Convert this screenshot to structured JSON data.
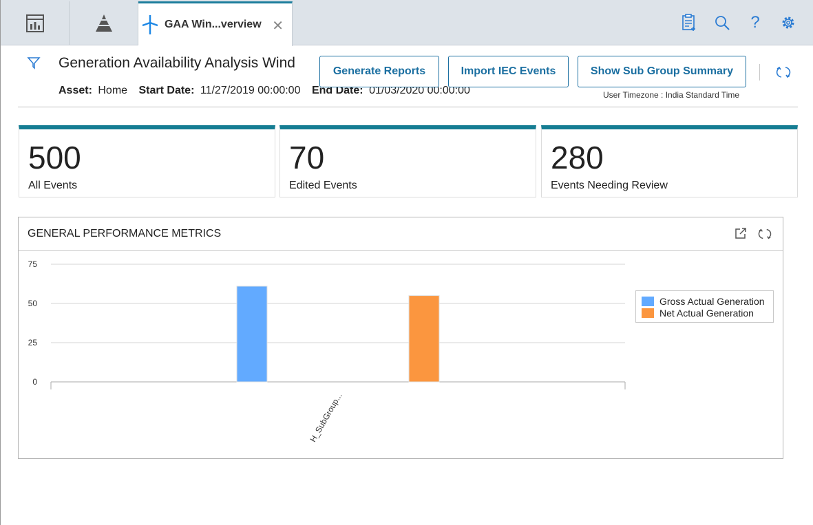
{
  "tabs": {
    "active_label": "GAA Win...verview",
    "icons": [
      "dashboard-icon",
      "pyramid-icon",
      "wind-turbine-icon"
    ]
  },
  "toolbar_icons": [
    "clipboard-add-icon",
    "search-icon",
    "help-icon",
    "gear-icon"
  ],
  "header": {
    "title": "Generation Availability Analysis Wind",
    "asset_label": "Asset:",
    "asset_value": "Home",
    "start_label": "Start Date:",
    "start_value": "11/27/2019 00:00:00",
    "end_label": "End Date:",
    "end_value": "01/03/2020 00:00:00",
    "timezone": "User Timezone : India Standard Time"
  },
  "buttons": {
    "generate_reports": "Generate Reports",
    "import_iec": "Import IEC Events",
    "show_summary": "Show Sub Group Summary"
  },
  "cards": [
    {
      "value": "500",
      "label": "All Events"
    },
    {
      "value": "70",
      "label": "Edited Events"
    },
    {
      "value": "280",
      "label": "Events Needing Review"
    }
  ],
  "panel": {
    "title": "GENERAL PERFORMANCE METRICS"
  },
  "colors": {
    "accent": "#157d93",
    "button": "#1b6fa1",
    "series_gross": "#62aaff",
    "series_net": "#fb963f"
  },
  "chart_data": {
    "type": "bar",
    "categories": [
      "H_SubGroup..."
    ],
    "series": [
      {
        "name": "Gross Actual Generation",
        "values": [
          61
        ]
      },
      {
        "name": "Net Actual Generation",
        "values": [
          55
        ]
      }
    ],
    "ylim": [
      0,
      75
    ],
    "yticks": [
      0,
      25,
      50,
      75
    ],
    "grid": true,
    "legend": "right"
  }
}
